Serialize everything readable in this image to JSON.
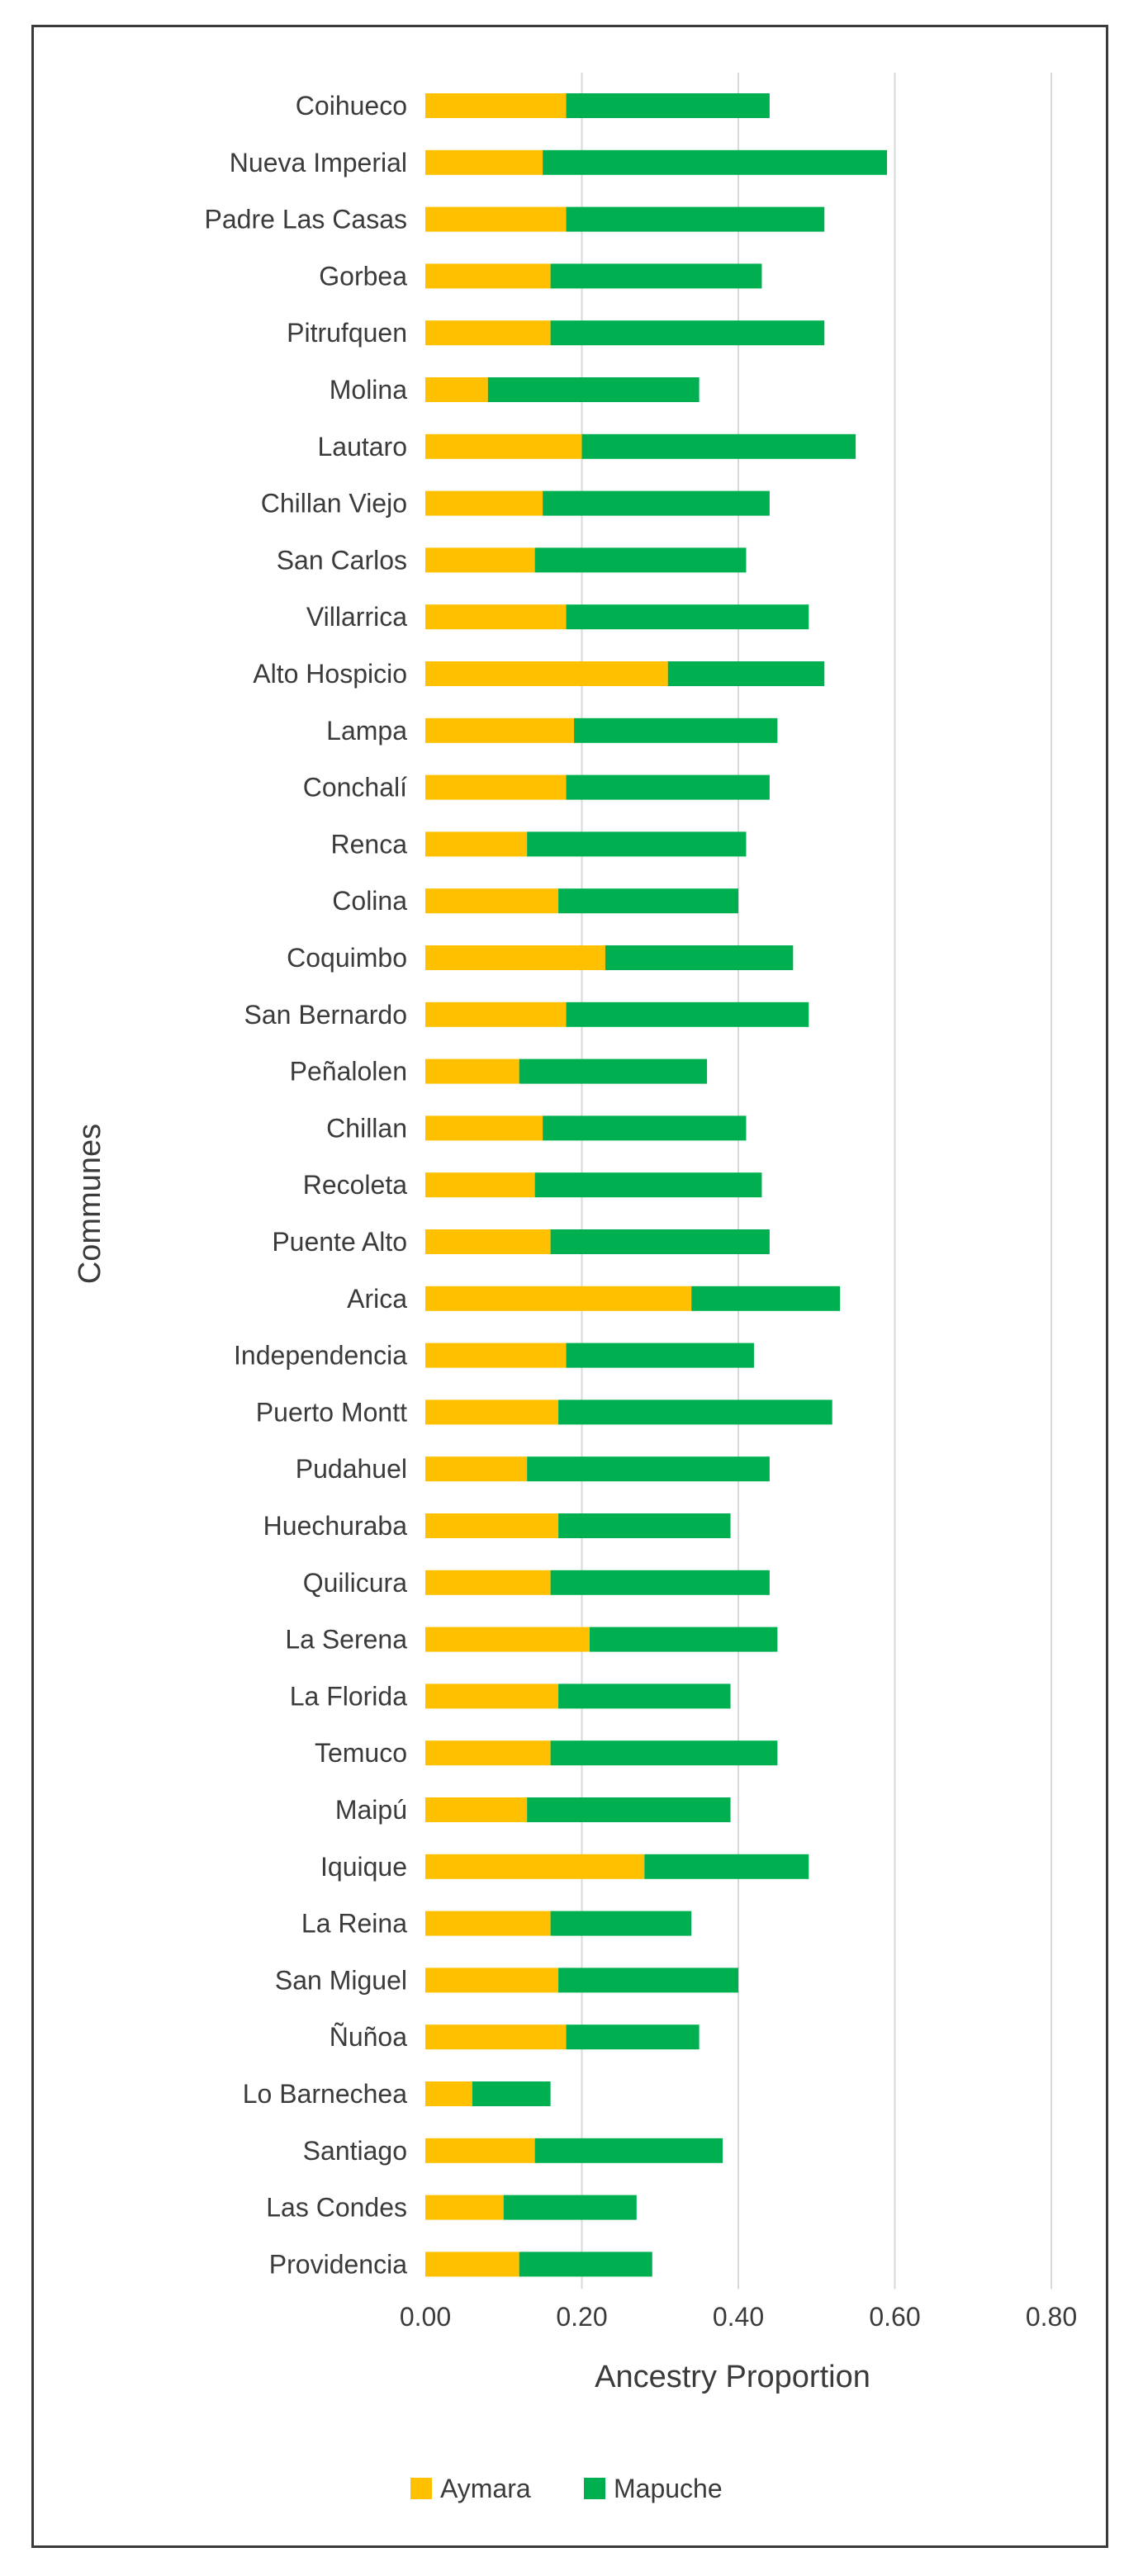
{
  "chart_data": {
    "type": "bar",
    "orientation": "horizontal",
    "stacked": true,
    "title": "",
    "xlabel": "Ancestry Proportion",
    "ylabel": "Communes",
    "xlim": [
      0,
      0.8
    ],
    "x_ticks": [
      0.0,
      0.2,
      0.4,
      0.6,
      0.8
    ],
    "x_tick_labels": [
      "0.00",
      "0.20",
      "0.40",
      "0.60",
      "0.80"
    ],
    "grid": "vertical",
    "legend_position": "bottom",
    "categories": [
      "Coihueco",
      "Nueva Imperial",
      "Padre Las Casas",
      "Gorbea",
      "Pitrufquen",
      "Molina",
      "Lautaro",
      "Chillan Viejo",
      "San Carlos",
      "Villarrica",
      "Alto Hospicio",
      "Lampa",
      "Conchalí",
      "Renca",
      "Colina",
      "Coquimbo",
      "San Bernardo",
      "Peñalolen",
      "Chillan",
      "Recoleta",
      "Puente Alto",
      "Arica",
      "Independencia",
      "Puerto Montt",
      "Pudahuel",
      "Huechuraba",
      "Quilicura",
      "La Serena",
      "La Florida",
      "Temuco",
      "Maipú",
      "Iquique",
      "La Reina",
      "San Miguel",
      "Ñuñoa",
      "Lo Barnechea",
      "Santiago",
      "Las Condes",
      "Providencia"
    ],
    "series": [
      {
        "name": "Aymara",
        "color": "#FFC000",
        "values": [
          0.18,
          0.15,
          0.18,
          0.16,
          0.16,
          0.08,
          0.2,
          0.15,
          0.14,
          0.18,
          0.31,
          0.19,
          0.18,
          0.13,
          0.17,
          0.23,
          0.18,
          0.12,
          0.15,
          0.14,
          0.16,
          0.34,
          0.18,
          0.17,
          0.13,
          0.17,
          0.16,
          0.21,
          0.17,
          0.16,
          0.13,
          0.28,
          0.16,
          0.17,
          0.18,
          0.06,
          0.14,
          0.1,
          0.12
        ]
      },
      {
        "name": "Mapuche",
        "color": "#00B050",
        "values": [
          0.26,
          0.44,
          0.33,
          0.27,
          0.35,
          0.27,
          0.35,
          0.29,
          0.27,
          0.31,
          0.2,
          0.26,
          0.26,
          0.28,
          0.23,
          0.24,
          0.31,
          0.24,
          0.26,
          0.29,
          0.28,
          0.19,
          0.24,
          0.35,
          0.31,
          0.22,
          0.28,
          0.24,
          0.22,
          0.29,
          0.26,
          0.21,
          0.18,
          0.23,
          0.17,
          0.1,
          0.24,
          0.17,
          0.17
        ]
      }
    ]
  }
}
